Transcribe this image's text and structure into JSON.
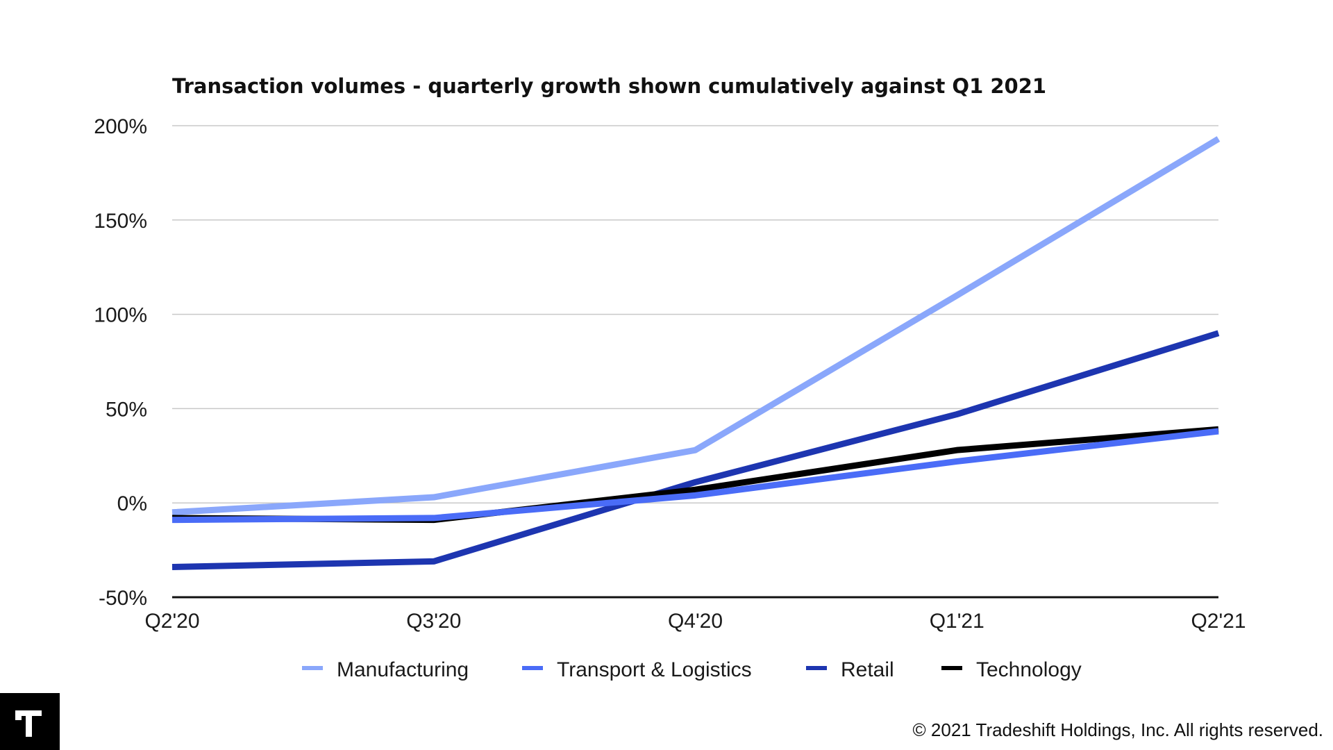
{
  "chart_data": {
    "type": "line",
    "title": "Transaction volumes - quarterly growth shown cumulatively against Q1 2021",
    "xlabel": "",
    "ylabel": "",
    "categories": [
      "Q2'20",
      "Q3'20",
      "Q4'20",
      "Q1'21",
      "Q2'21"
    ],
    "ylim": [
      -50,
      200
    ],
    "yticks": [
      200,
      150,
      100,
      50,
      0,
      -50
    ],
    "ytick_labels": [
      "200%",
      "150%",
      "100%",
      "50%",
      "0%",
      "-50%"
    ],
    "grid": true,
    "legend_position": "bottom",
    "series": [
      {
        "name": "Manufacturing",
        "color": "#8aa7fb",
        "values": [
          -5,
          3,
          28,
          110,
          193
        ]
      },
      {
        "name": "Retail",
        "color": "#1d35b0",
        "values": [
          -34,
          -31,
          11,
          47,
          90
        ]
      },
      {
        "name": "Technology",
        "color": "#000000",
        "values": [
          -8,
          -9,
          7,
          28,
          39
        ]
      },
      {
        "name": "Transport & Logistics",
        "color": "#4a6cf7",
        "values": [
          -9,
          -8,
          4,
          22,
          38
        ]
      }
    ],
    "legend_order": [
      "Manufacturing",
      "Transport & Logistics",
      "Retail",
      "Technology"
    ]
  },
  "footer": {
    "logo_icon": "tradeshift-logo-icon",
    "copyright": "© 2021 Tradeshift Holdings, Inc. All rights reserved."
  }
}
